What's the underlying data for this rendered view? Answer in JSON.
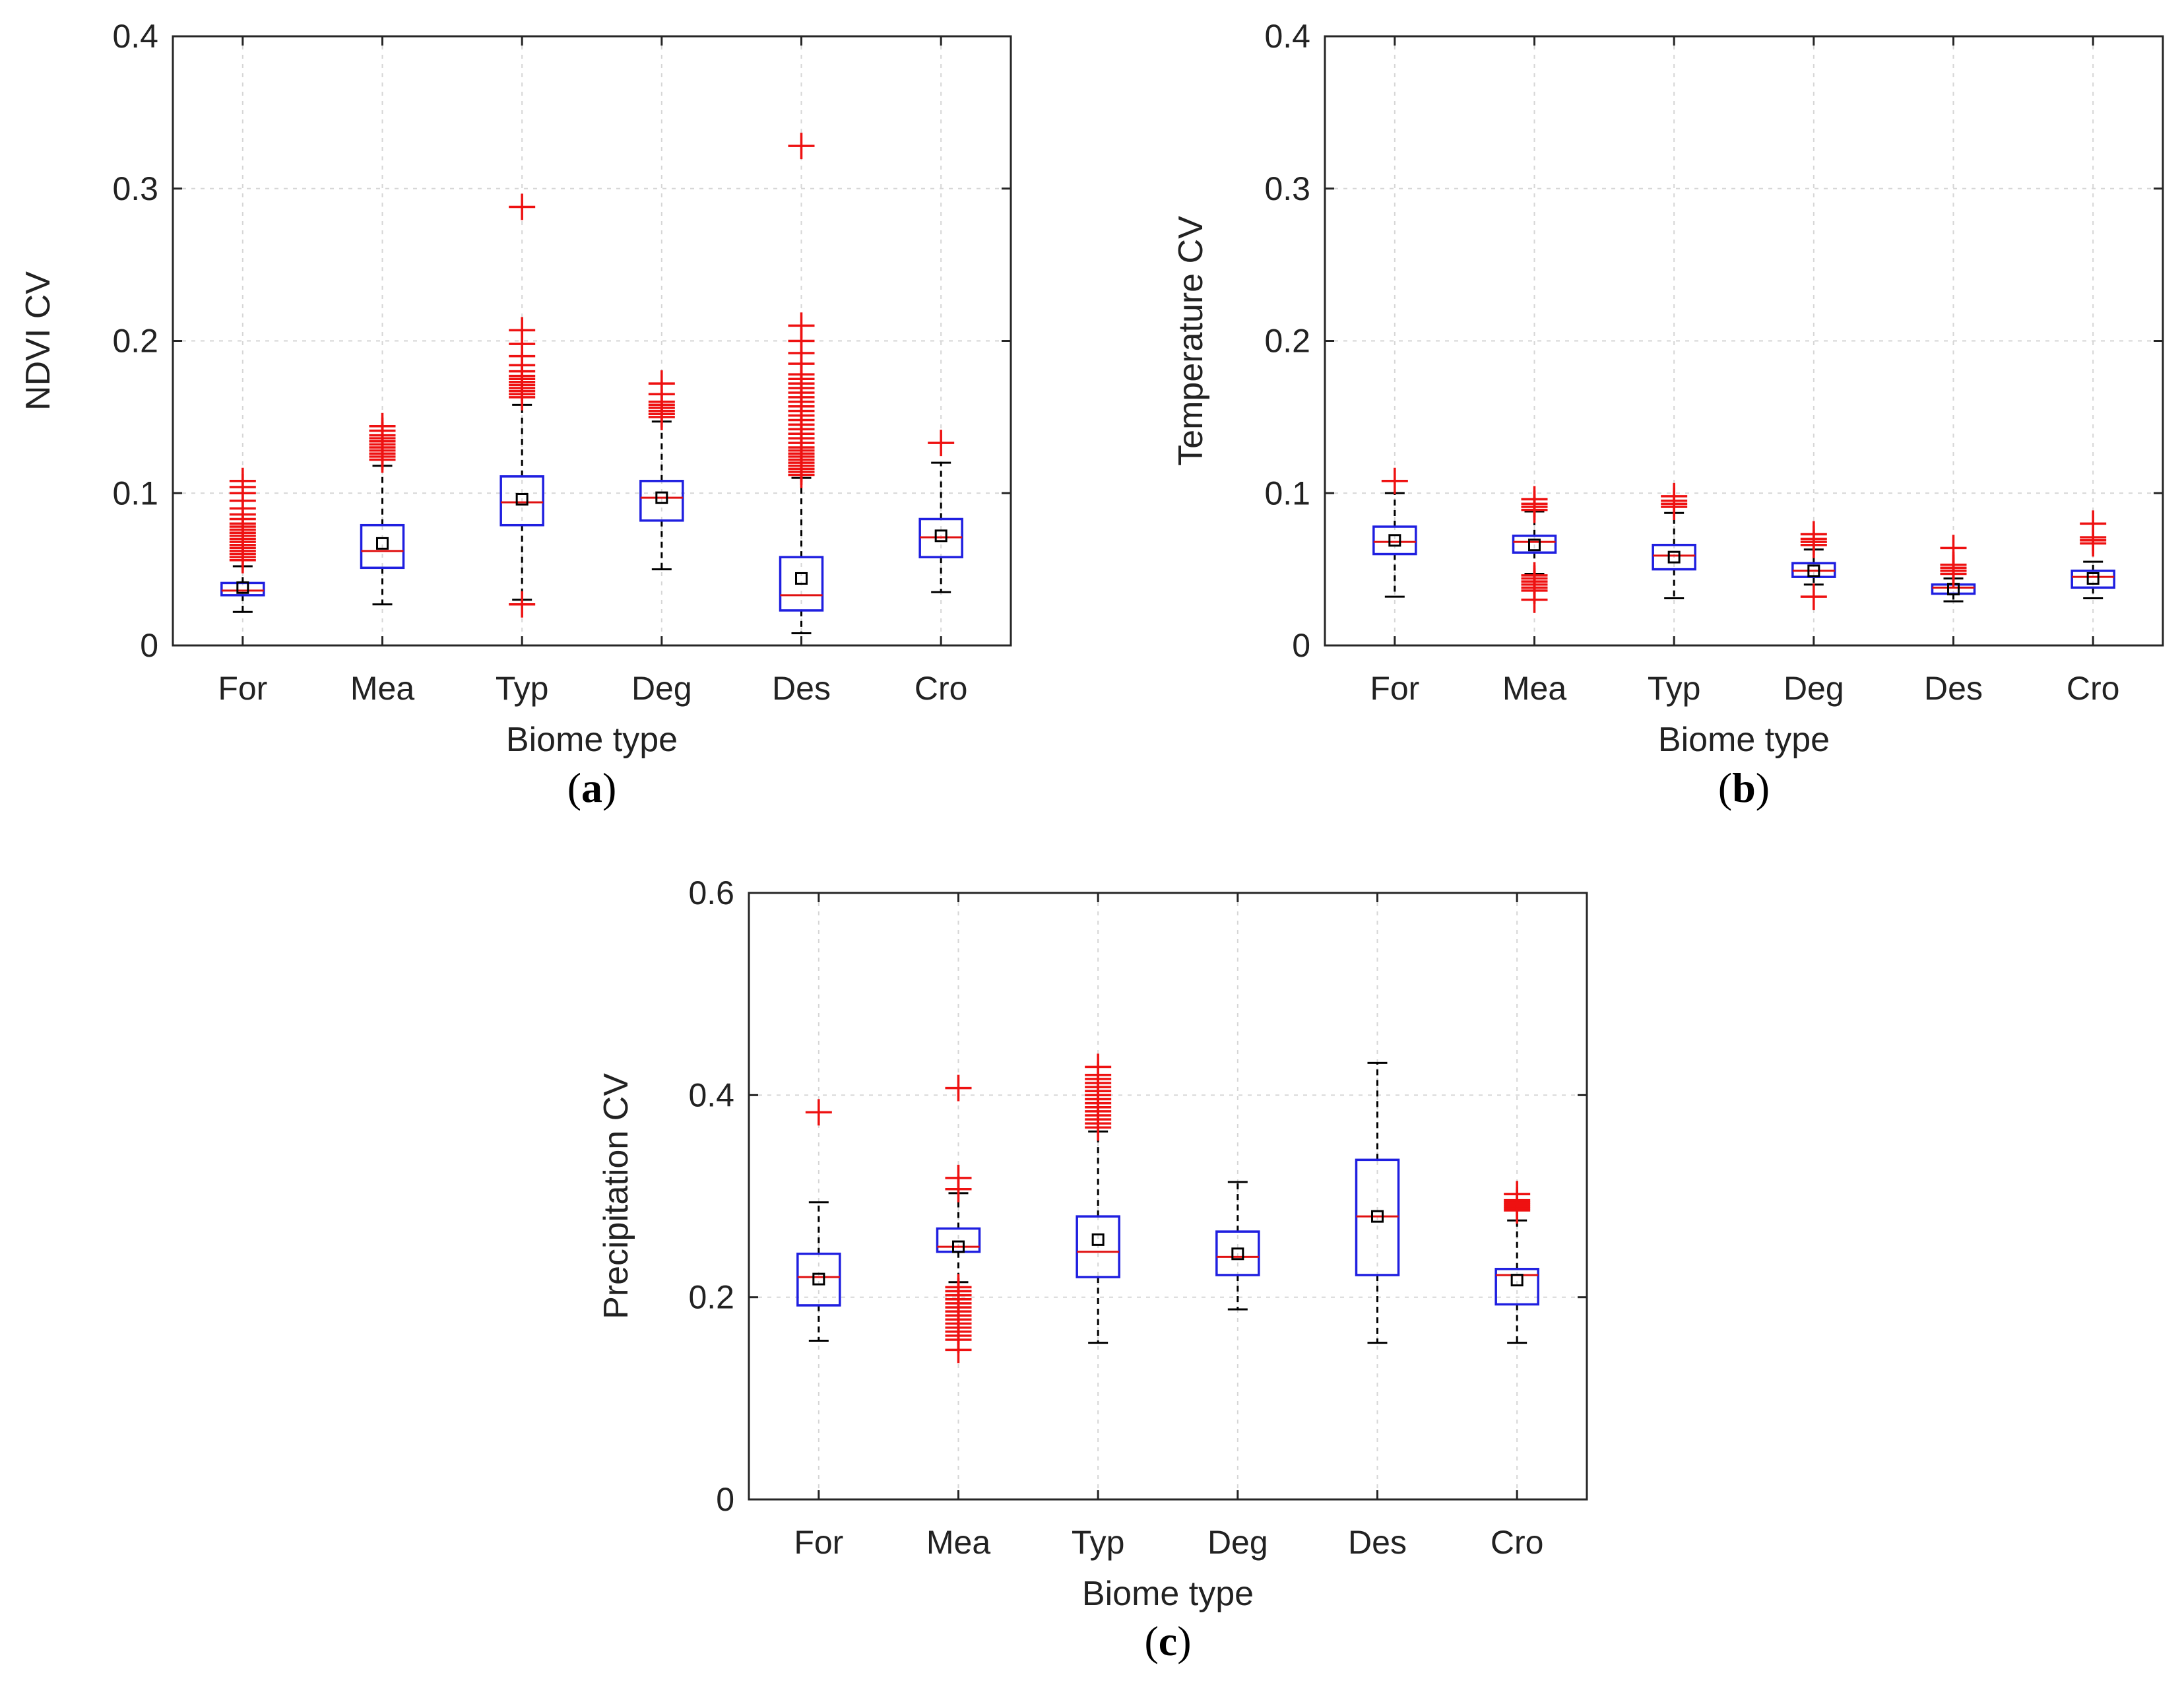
{
  "chart_data": [
    {
      "id": "a",
      "type": "box",
      "panel_label": "a",
      "xlabel": "Biome type",
      "ylabel": "NDVI CV",
      "ylim": [
        0,
        0.4
      ],
      "yticks": [
        0,
        0.1,
        0.2,
        0.3,
        0.4
      ],
      "ytick_labels": [
        "0",
        "0.1",
        "0.2",
        "0.3",
        "0.4"
      ],
      "categories": [
        "For",
        "Mea",
        "Typ",
        "Deg",
        "Des",
        "Cro"
      ],
      "grid": true,
      "boxes": [
        {
          "cat": "For",
          "q1": 0.033,
          "median": 0.036,
          "q3": 0.041,
          "mean": 0.038,
          "whisker_low": 0.022,
          "whisker_high": 0.052,
          "outliers": [
            0.056,
            0.058,
            0.06,
            0.062,
            0.064,
            0.066,
            0.068,
            0.07,
            0.072,
            0.074,
            0.076,
            0.078,
            0.08,
            0.083,
            0.086,
            0.09,
            0.095,
            0.1,
            0.104,
            0.108
          ]
        },
        {
          "cat": "Mea",
          "q1": 0.051,
          "median": 0.062,
          "q3": 0.079,
          "mean": 0.067,
          "whisker_low": 0.027,
          "whisker_high": 0.118,
          "outliers": [
            0.122,
            0.124,
            0.126,
            0.128,
            0.13,
            0.132,
            0.134,
            0.136,
            0.138,
            0.141,
            0.144
          ]
        },
        {
          "cat": "Typ",
          "q1": 0.079,
          "median": 0.094,
          "q3": 0.111,
          "mean": 0.096,
          "whisker_low": 0.03,
          "whisker_high": 0.158,
          "outliers": [
            0.027,
            0.163,
            0.165,
            0.167,
            0.169,
            0.171,
            0.173,
            0.175,
            0.177,
            0.18,
            0.184,
            0.19,
            0.198,
            0.207,
            0.288
          ]
        },
        {
          "cat": "Deg",
          "q1": 0.082,
          "median": 0.097,
          "q3": 0.108,
          "mean": 0.097,
          "whisker_low": 0.05,
          "whisker_high": 0.147,
          "outliers": [
            0.15,
            0.152,
            0.154,
            0.156,
            0.158,
            0.16,
            0.165,
            0.172
          ]
        },
        {
          "cat": "Des",
          "q1": 0.023,
          "median": 0.033,
          "q3": 0.058,
          "mean": 0.044,
          "whisker_low": 0.008,
          "whisker_high": 0.11,
          "outliers": [
            0.112,
            0.114,
            0.116,
            0.118,
            0.12,
            0.122,
            0.124,
            0.126,
            0.128,
            0.13,
            0.133,
            0.136,
            0.139,
            0.142,
            0.145,
            0.148,
            0.151,
            0.154,
            0.157,
            0.16,
            0.163,
            0.166,
            0.169,
            0.172,
            0.175,
            0.178,
            0.185,
            0.192,
            0.2,
            0.21,
            0.328
          ]
        },
        {
          "cat": "Cro",
          "q1": 0.058,
          "median": 0.071,
          "q3": 0.083,
          "mean": 0.072,
          "whisker_low": 0.035,
          "whisker_high": 0.12,
          "outliers": [
            0.133
          ]
        }
      ]
    },
    {
      "id": "b",
      "type": "box",
      "panel_label": "b",
      "xlabel": "Biome type",
      "ylabel": "Temperature CV",
      "ylim": [
        0,
        0.4
      ],
      "yticks": [
        0,
        0.1,
        0.2,
        0.3,
        0.4
      ],
      "ytick_labels": [
        "0",
        "0.1",
        "0.2",
        "0.3",
        "0.4"
      ],
      "categories": [
        "For",
        "Mea",
        "Typ",
        "Deg",
        "Des",
        "Cro"
      ],
      "grid": true,
      "boxes": [
        {
          "cat": "For",
          "q1": 0.06,
          "median": 0.068,
          "q3": 0.078,
          "mean": 0.069,
          "whisker_low": 0.032,
          "whisker_high": 0.1,
          "outliers": [
            0.108
          ]
        },
        {
          "cat": "Mea",
          "q1": 0.061,
          "median": 0.068,
          "q3": 0.072,
          "mean": 0.066,
          "whisker_low": 0.047,
          "whisker_high": 0.088,
          "outliers": [
            0.03,
            0.036,
            0.038,
            0.04,
            0.042,
            0.044,
            0.046,
            0.089,
            0.091,
            0.093,
            0.096
          ]
        },
        {
          "cat": "Typ",
          "q1": 0.05,
          "median": 0.059,
          "q3": 0.066,
          "mean": 0.058,
          "whisker_low": 0.031,
          "whisker_high": 0.087,
          "outliers": [
            0.091,
            0.093,
            0.095,
            0.098
          ]
        },
        {
          "cat": "Deg",
          "q1": 0.045,
          "median": 0.049,
          "q3": 0.054,
          "mean": 0.049,
          "whisker_low": 0.04,
          "whisker_high": 0.063,
          "outliers": [
            0.032,
            0.066,
            0.068,
            0.07,
            0.073
          ]
        },
        {
          "cat": "Des",
          "q1": 0.034,
          "median": 0.038,
          "q3": 0.04,
          "mean": 0.037,
          "whisker_low": 0.029,
          "whisker_high": 0.044,
          "outliers": [
            0.047,
            0.049,
            0.051,
            0.053,
            0.064
          ]
        },
        {
          "cat": "Cro",
          "q1": 0.038,
          "median": 0.045,
          "q3": 0.049,
          "mean": 0.044,
          "whisker_low": 0.031,
          "whisker_high": 0.055,
          "outliers": [
            0.067,
            0.069,
            0.071,
            0.08
          ]
        }
      ]
    },
    {
      "id": "c",
      "type": "box",
      "panel_label": "c",
      "xlabel": "Biome type",
      "ylabel": "Precipitation CV",
      "ylim": [
        0,
        0.6
      ],
      "yticks": [
        0,
        0.2,
        0.4,
        0.6
      ],
      "ytick_labels": [
        "0",
        "0.2",
        "0.4",
        "0.6"
      ],
      "categories": [
        "For",
        "Mea",
        "Typ",
        "Deg",
        "Des",
        "Cro"
      ],
      "grid": true,
      "boxes": [
        {
          "cat": "For",
          "q1": 0.192,
          "median": 0.22,
          "q3": 0.243,
          "mean": 0.218,
          "whisker_low": 0.157,
          "whisker_high": 0.294,
          "outliers": [
            0.383
          ]
        },
        {
          "cat": "Mea",
          "q1": 0.245,
          "median": 0.25,
          "q3": 0.268,
          "mean": 0.25,
          "whisker_low": 0.215,
          "whisker_high": 0.303,
          "outliers": [
            0.148,
            0.158,
            0.162,
            0.166,
            0.17,
            0.174,
            0.178,
            0.182,
            0.186,
            0.19,
            0.194,
            0.198,
            0.202,
            0.206,
            0.21,
            0.307,
            0.318,
            0.407
          ]
        },
        {
          "cat": "Typ",
          "q1": 0.22,
          "median": 0.245,
          "q3": 0.28,
          "mean": 0.257,
          "whisker_low": 0.155,
          "whisker_high": 0.364,
          "outliers": [
            0.368,
            0.372,
            0.376,
            0.38,
            0.384,
            0.388,
            0.392,
            0.396,
            0.4,
            0.404,
            0.408,
            0.412,
            0.416,
            0.42,
            0.428
          ]
        },
        {
          "cat": "Deg",
          "q1": 0.222,
          "median": 0.24,
          "q3": 0.265,
          "mean": 0.243,
          "whisker_low": 0.188,
          "whisker_high": 0.314,
          "outliers": []
        },
        {
          "cat": "Des",
          "q1": 0.222,
          "median": 0.28,
          "q3": 0.336,
          "mean": 0.28,
          "whisker_low": 0.155,
          "whisker_high": 0.432,
          "outliers": []
        },
        {
          "cat": "Cro",
          "q1": 0.193,
          "median": 0.222,
          "q3": 0.228,
          "mean": 0.217,
          "whisker_low": 0.155,
          "whisker_high": 0.276,
          "outliers": [
            0.286,
            0.288,
            0.29,
            0.292,
            0.294,
            0.296,
            0.302
          ]
        }
      ]
    }
  ]
}
